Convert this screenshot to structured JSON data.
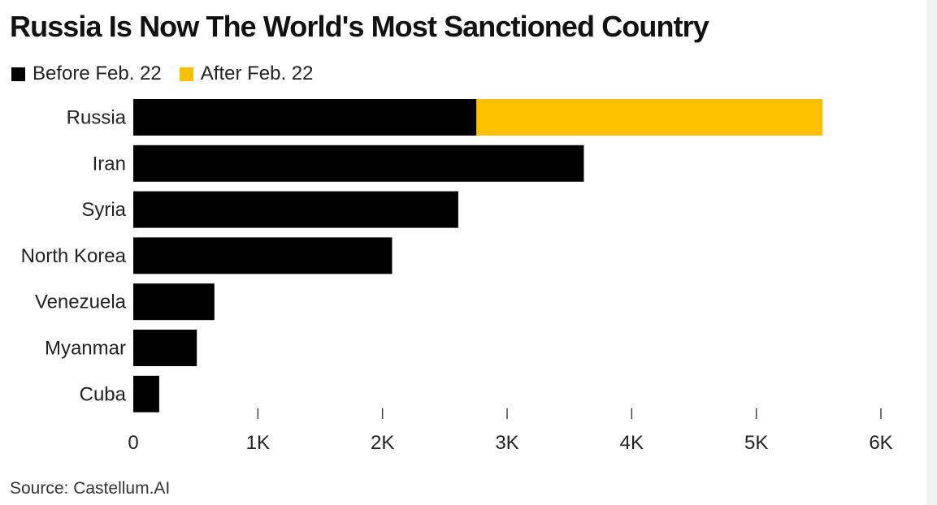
{
  "chart_data": {
    "type": "bar",
    "orientation": "horizontal",
    "stacked": true,
    "title": "Russia Is Now The World's Most Sanctioned Country",
    "categories": [
      "Russia",
      "Iran",
      "Syria",
      "North Korea",
      "Venezuela",
      "Myanmar",
      "Cuba"
    ],
    "series": [
      {
        "name": "Before Feb. 22",
        "color": "#000000",
        "values": [
          2754,
          3616,
          2608,
          2077,
          651,
          510,
          208
        ]
      },
      {
        "name": "After Feb. 22",
        "color": "#ffc000",
        "values": [
          2778,
          0,
          0,
          0,
          0,
          0,
          0
        ]
      }
    ],
    "xlim": [
      0,
      6000
    ],
    "x_ticks": [
      0,
      1000,
      2000,
      3000,
      4000,
      5000,
      6000
    ],
    "x_tick_labels": [
      "0",
      "1K",
      "2K",
      "3K",
      "4K",
      "5K",
      "6K"
    ],
    "xlabel": "",
    "ylabel": "",
    "grid": false,
    "legend_position": "top-left",
    "source": "Source: Castellum.AI"
  }
}
